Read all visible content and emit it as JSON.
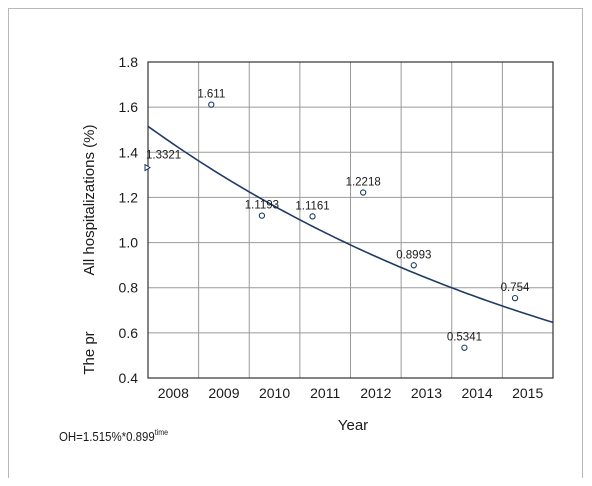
{
  "chart_data": {
    "type": "scatter",
    "xlabel": "Year",
    "ylabel": "All hospitalizations (%)",
    "ylabel_fragment": "The pr",
    "x_ticks": [
      "2008",
      "2009",
      "2010",
      "2011",
      "2012",
      "2013",
      "2014",
      "2015"
    ],
    "y_ticks": [
      "0.4",
      "0.6",
      "0.8",
      "1.0",
      "1.2",
      "1.4",
      "1.6",
      "1.8"
    ],
    "ylim": [
      0.4,
      1.8
    ],
    "grid": true,
    "points": [
      {
        "x": 2007.75,
        "y": 1.3321,
        "label": "1.3321",
        "marker": "triangle-right"
      },
      {
        "x": 2008.75,
        "y": 1.611,
        "label": "1.611",
        "marker": "circle"
      },
      {
        "x": 2009.75,
        "y": 1.1193,
        "label": "1.1193",
        "marker": "circle"
      },
      {
        "x": 2010.75,
        "y": 1.1161,
        "label": "1.1161",
        "marker": "circle"
      },
      {
        "x": 2011.75,
        "y": 1.2218,
        "label": "1.2218",
        "marker": "circle"
      },
      {
        "x": 2012.75,
        "y": 0.8993,
        "label": "0.8993",
        "marker": "circle"
      },
      {
        "x": 2013.75,
        "y": 0.5341,
        "label": "0.5341",
        "marker": "circle"
      },
      {
        "x": 2014.75,
        "y": 0.754,
        "label": "0.754",
        "marker": "circle"
      }
    ],
    "trend": {
      "a": 1.515,
      "b": 0.899
    },
    "formula": {
      "main": "OH=1.515%*0.899",
      "exponent": "time"
    }
  },
  "colors": {
    "curve": "#1f3a68",
    "marker": "#1f3a68",
    "grid": "#9a9a9a",
    "axis": "#333333"
  }
}
